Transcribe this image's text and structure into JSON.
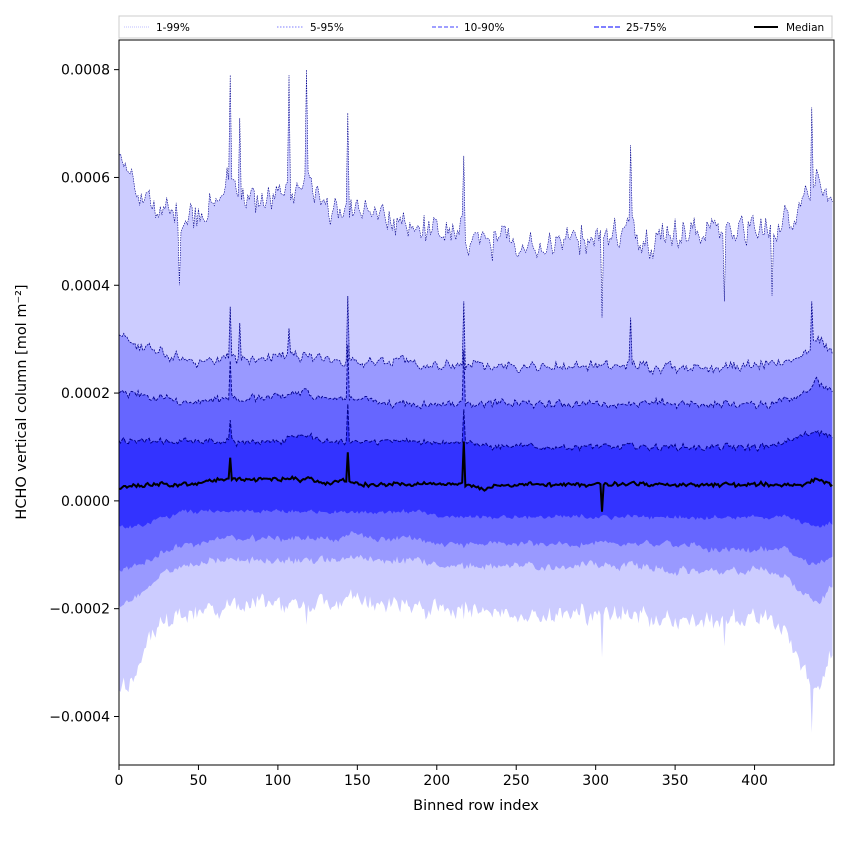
{
  "chart_data": {
    "type": "area",
    "title": "",
    "xlabel": "Binned row index",
    "ylabel": "HCHO vertical column [mol m⁻²]",
    "xlim": [
      0,
      450
    ],
    "ylim": [
      -0.00049,
      0.000855
    ],
    "x_ticks": [
      0,
      50,
      100,
      150,
      200,
      250,
      300,
      350,
      400
    ],
    "x_tick_labels": [
      "0",
      "50",
      "100",
      "150",
      "200",
      "250",
      "300",
      "350",
      "400"
    ],
    "y_ticks": [
      -0.0004,
      -0.0002,
      0.0,
      0.0002,
      0.0004,
      0.0006,
      0.0008
    ],
    "y_tick_labels": [
      "−0.0004",
      "−0.0002",
      "0.0000",
      "0.0002",
      "0.0004",
      "0.0006",
      "0.0008"
    ],
    "grid": false,
    "legend_position": "top, spanning full width, 5 columns",
    "x_sample_indices": [
      0,
      10,
      20,
      30,
      40,
      50,
      60,
      70,
      80,
      90,
      100,
      110,
      120,
      130,
      140,
      150,
      160,
      170,
      180,
      190,
      200,
      210,
      220,
      230,
      240,
      250,
      260,
      270,
      280,
      290,
      300,
      310,
      320,
      330,
      340,
      350,
      360,
      370,
      380,
      390,
      400,
      410,
      420,
      430,
      440,
      449
    ],
    "series": [
      {
        "name": "1-99%",
        "band": "upper",
        "values": [
          0.00065,
          0.00058,
          0.00054,
          0.00054,
          0.00052,
          0.00054,
          0.00055,
          0.0006,
          0.00056,
          0.00055,
          0.00056,
          0.00058,
          0.0006,
          0.00054,
          0.00053,
          0.00053,
          0.00054,
          0.00051,
          0.00051,
          0.00051,
          0.0005,
          0.00049,
          0.00049,
          0.00048,
          0.00048,
          0.00047,
          0.00048,
          0.00048,
          0.00049,
          0.00049,
          0.00049,
          0.0005,
          0.0005,
          0.00049,
          0.00049,
          0.0005,
          0.0005,
          0.00051,
          0.00051,
          0.00051,
          0.0005,
          0.0005,
          0.00052,
          0.00056,
          0.0006,
          0.00055
        ]
      },
      {
        "name": "1-99%",
        "band": "lower",
        "values": [
          -0.00036,
          -0.00033,
          -0.00025,
          -0.00022,
          -0.00021,
          -0.0002,
          -0.0002,
          -0.00019,
          -0.00019,
          -0.00019,
          -0.00019,
          -0.00019,
          -0.0002,
          -0.00019,
          -0.00019,
          -0.00018,
          -0.00019,
          -0.00019,
          -0.00019,
          -0.0002,
          -0.0002,
          -0.0002,
          -0.0002,
          -0.0002,
          -0.00021,
          -0.00021,
          -0.00021,
          -0.00021,
          -0.00021,
          -0.00021,
          -0.00021,
          -0.00021,
          -0.00021,
          -0.00021,
          -0.00022,
          -0.00022,
          -0.00022,
          -0.00022,
          -0.00022,
          -0.00022,
          -0.00021,
          -0.00022,
          -0.00024,
          -0.00031,
          -0.00036,
          -0.00028
        ]
      },
      {
        "name": "5-95%",
        "band": "upper",
        "values": [
          0.0003,
          0.00029,
          0.00028,
          0.00027,
          0.00026,
          0.00026,
          0.00026,
          0.00027,
          0.00026,
          0.00026,
          0.00027,
          0.00027,
          0.00027,
          0.00026,
          0.00026,
          0.00026,
          0.00026,
          0.00026,
          0.00026,
          0.00025,
          0.00025,
          0.00025,
          0.00025,
          0.00025,
          0.00025,
          0.00025,
          0.00025,
          0.00025,
          0.00025,
          0.00025,
          0.00025,
          0.00025,
          0.00025,
          0.00025,
          0.00025,
          0.00025,
          0.00025,
          0.00025,
          0.00025,
          0.00025,
          0.00025,
          0.00025,
          0.00026,
          0.00027,
          0.0003,
          0.00028
        ]
      },
      {
        "name": "5-95%",
        "band": "lower",
        "values": [
          -0.0002,
          -0.00018,
          -0.00016,
          -0.00013,
          -0.00012,
          -0.00012,
          -0.00011,
          -0.00011,
          -0.00011,
          -0.00011,
          -0.00011,
          -0.00011,
          -0.00011,
          -0.00011,
          -0.00011,
          -0.0001,
          -0.00011,
          -0.00011,
          -0.00011,
          -0.00011,
          -0.00012,
          -0.00012,
          -0.00012,
          -0.00012,
          -0.00012,
          -0.00012,
          -0.00012,
          -0.00012,
          -0.00012,
          -0.00012,
          -0.00012,
          -0.00012,
          -0.00012,
          -0.00012,
          -0.00013,
          -0.00013,
          -0.00013,
          -0.00013,
          -0.00013,
          -0.00013,
          -0.00013,
          -0.00013,
          -0.00014,
          -0.00017,
          -0.00019,
          -0.00016
        ]
      },
      {
        "name": "10-90%",
        "band": "upper",
        "values": [
          0.0002,
          0.0002,
          0.00019,
          0.00019,
          0.00018,
          0.00018,
          0.00019,
          0.00019,
          0.00019,
          0.00019,
          0.00019,
          0.0002,
          0.0002,
          0.00019,
          0.00019,
          0.00019,
          0.00019,
          0.00018,
          0.00018,
          0.00018,
          0.00018,
          0.00018,
          0.00018,
          0.00018,
          0.00018,
          0.00018,
          0.00018,
          0.00018,
          0.00018,
          0.00018,
          0.00018,
          0.00018,
          0.00018,
          0.00018,
          0.00018,
          0.00018,
          0.00018,
          0.00018,
          0.00018,
          0.00018,
          0.00018,
          0.00018,
          0.00019,
          0.0002,
          0.00022,
          0.0002
        ]
      },
      {
        "name": "10-90%",
        "band": "lower",
        "values": [
          -0.00013,
          -0.00012,
          -0.00011,
          -9e-05,
          -8e-05,
          -8e-05,
          -7e-05,
          -7e-05,
          -7e-05,
          -7e-05,
          -7e-05,
          -7e-05,
          -7e-05,
          -7e-05,
          -7e-05,
          -6e-05,
          -7e-05,
          -7e-05,
          -7e-05,
          -7e-05,
          -8e-05,
          -8e-05,
          -8e-05,
          -8e-05,
          -8e-05,
          -8e-05,
          -8e-05,
          -8e-05,
          -8e-05,
          -8e-05,
          -8e-05,
          -8e-05,
          -8e-05,
          -8e-05,
          -8e-05,
          -8e-05,
          -8e-05,
          -9e-05,
          -9e-05,
          -9e-05,
          -9e-05,
          -9e-05,
          -9e-05,
          -0.00011,
          -0.00012,
          -0.0001
        ]
      },
      {
        "name": "25-75%",
        "band": "upper",
        "values": [
          0.00011,
          0.00011,
          0.00011,
          0.00011,
          0.00011,
          0.00011,
          0.00011,
          0.00011,
          0.00011,
          0.00011,
          0.00011,
          0.00012,
          0.00012,
          0.00011,
          0.00011,
          0.00011,
          0.00011,
          0.00011,
          0.00011,
          0.00011,
          0.00011,
          0.00011,
          0.00011,
          0.0001,
          0.0001,
          0.0001,
          0.0001,
          0.0001,
          0.0001,
          0.0001,
          0.0001,
          0.0001,
          0.0001,
          0.0001,
          0.0001,
          0.0001,
          0.0001,
          0.0001,
          0.0001,
          0.0001,
          0.0001,
          0.0001,
          0.00011,
          0.00012,
          0.00013,
          0.00012
        ]
      },
      {
        "name": "25-75%",
        "band": "lower",
        "values": [
          -5e-05,
          -5e-05,
          -4e-05,
          -3e-05,
          -2e-05,
          -2e-05,
          -2e-05,
          -2e-05,
          -2e-05,
          -2e-05,
          -2e-05,
          -2e-05,
          -2e-05,
          -2e-05,
          -2e-05,
          -2e-05,
          -2e-05,
          -2e-05,
          -2e-05,
          -2e-05,
          -3e-05,
          -3e-05,
          -3e-05,
          -3e-05,
          -3e-05,
          -3e-05,
          -3e-05,
          -3e-05,
          -3e-05,
          -3e-05,
          -3e-05,
          -3e-05,
          -3e-05,
          -3e-05,
          -3e-05,
          -3e-05,
          -3e-05,
          -3e-05,
          -3e-05,
          -3e-05,
          -3e-05,
          -3e-05,
          -3e-05,
          -4e-05,
          -5e-05,
          -4e-05
        ]
      },
      {
        "name": "Median",
        "values": [
          2e-05,
          3e-05,
          3e-05,
          3e-05,
          3e-05,
          3e-05,
          4e-05,
          4e-05,
          4e-05,
          4e-05,
          4e-05,
          4e-05,
          4e-05,
          3e-05,
          4e-05,
          3e-05,
          3e-05,
          3e-05,
          3e-05,
          3e-05,
          3e-05,
          3e-05,
          3e-05,
          2e-05,
          3e-05,
          3e-05,
          3e-05,
          3e-05,
          3e-05,
          3e-05,
          3e-05,
          3e-05,
          3e-05,
          3e-05,
          3e-05,
          3e-05,
          3e-05,
          3e-05,
          3e-05,
          3e-05,
          3e-05,
          3e-05,
          3e-05,
          3e-05,
          4e-05,
          3e-05
        ]
      }
    ],
    "spikes": [
      {
        "x": 38,
        "values": {
          "u99": 0.0004
        }
      },
      {
        "x": 70,
        "values": {
          "u99": 0.00079,
          "u95": 0.00036,
          "u90": 0.00026,
          "u75": 0.00015,
          "med": 8e-05
        }
      },
      {
        "x": 76,
        "values": {
          "u99": 0.00071,
          "u95": 0.00033
        }
      },
      {
        "x": 107,
        "values": {
          "u99": 0.00079,
          "u95": 0.00032
        }
      },
      {
        "x": 118,
        "values": {
          "u99": 0.0008,
          "l99": -0.00023
        }
      },
      {
        "x": 144,
        "values": {
          "u99": 0.00072,
          "u95": 0.00038,
          "u90": 0.00029,
          "u75": 0.00018,
          "med": 9e-05
        }
      },
      {
        "x": 217,
        "values": {
          "u99": 0.00064,
          "u95": 0.00037,
          "u90": 0.00028,
          "u75": 0.00017,
          "med": 0.00011,
          "l99": -0.00022
        }
      },
      {
        "x": 304,
        "values": {
          "u99": 0.00034,
          "med": -2e-05,
          "l99": -0.00029
        }
      },
      {
        "x": 322,
        "values": {
          "u99": 0.00066,
          "u95": 0.00034
        }
      },
      {
        "x": 381,
        "values": {
          "u99": 0.00037,
          "l99": -0.00027
        }
      },
      {
        "x": 411,
        "values": {
          "u99": 0.00038
        }
      },
      {
        "x": 436,
        "values": {
          "u99": 0.00073,
          "u95": 0.00037,
          "l99": -0.00043
        }
      }
    ],
    "colors": {
      "band_99": "#ccccff",
      "band_95": "#9999ff",
      "band_90": "#6666ff",
      "band_75": "#3333ff",
      "line_99": "#ccccff",
      "line_95": "#9999ff",
      "line_90": "#6666ff",
      "line_75": "#3333ff",
      "line_dark": "#00008b",
      "median": "#000000"
    },
    "legend": {
      "entries": [
        {
          "label": "1-99%",
          "color_key": "line_99",
          "dash": "1,1"
        },
        {
          "label": "5-95%",
          "color_key": "line_95",
          "dash": "1.5,1.5"
        },
        {
          "label": "10-90%",
          "color_key": "line_90",
          "dash": "4,2"
        },
        {
          "label": "25-75%",
          "color_key": "line_75",
          "dash": "5,2"
        },
        {
          "label": "Median",
          "color_key": "median",
          "dash": ""
        }
      ]
    }
  }
}
